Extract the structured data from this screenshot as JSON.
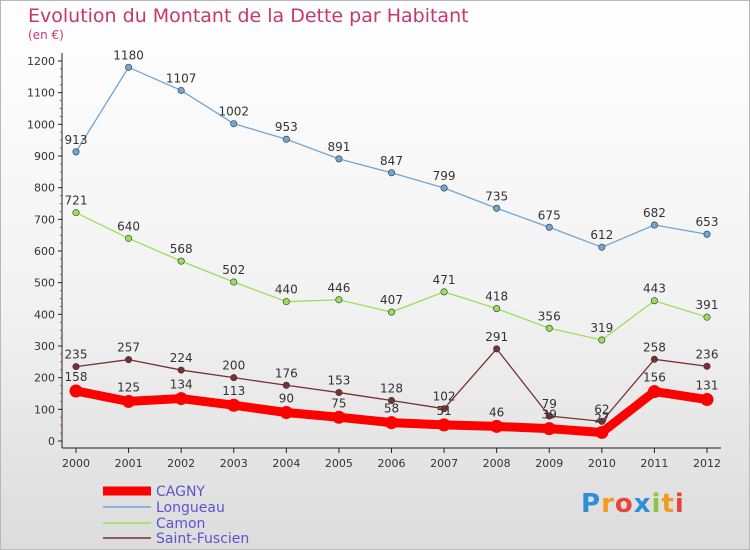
{
  "title": "Evolution du Montant de la Dette par Habitant",
  "unit": "(en €)",
  "logo": {
    "letters": [
      "P",
      "r",
      "o",
      "x",
      "i",
      "t",
      "i"
    ],
    "colors": [
      "#2f8fd6",
      "#f29a1d",
      "#e8463a",
      "#2f8fd6",
      "#8cc63f",
      "#f29a1d",
      "#e8463a"
    ]
  },
  "chart_data": {
    "type": "line",
    "x": [
      "2000",
      "2001",
      "2002",
      "2003",
      "2004",
      "2005",
      "2006",
      "2007",
      "2008",
      "2009",
      "2010",
      "2011",
      "2012"
    ],
    "ylim": [
      0,
      1200
    ],
    "yticks": [
      0,
      100,
      200,
      300,
      400,
      500,
      600,
      700,
      800,
      900,
      1000,
      1100,
      1200
    ],
    "grid": false,
    "legend": "bottom-left",
    "series": [
      {
        "name": "CAGNY",
        "color": "#ff0000",
        "values": [
          158,
          125,
          134,
          113,
          90,
          75,
          58,
          51,
          46,
          39,
          27,
          156,
          131
        ],
        "labels": [
          "158",
          "125",
          "134",
          "113",
          "90",
          "75",
          "58",
          "51",
          "46",
          "39",
          "27",
          "156",
          "131"
        ]
      },
      {
        "name": "Longueau",
        "color": "#6fa6d6",
        "values": [
          913,
          1180,
          1107,
          1002,
          953,
          891,
          847,
          799,
          735,
          675,
          612,
          682,
          653
        ],
        "labels": [
          "913",
          "1180",
          "1107",
          "1002",
          "953",
          "891",
          "847",
          "799",
          "735",
          "675",
          "612",
          "682",
          "653"
        ]
      },
      {
        "name": "Camon",
        "color": "#99e05a",
        "values": [
          721,
          640,
          568,
          502,
          440,
          446,
          407,
          471,
          418,
          356,
          319,
          443,
          391
        ],
        "labels": [
          "721",
          "640",
          "568",
          "502",
          "440",
          "446",
          "407",
          "471",
          "418",
          "356",
          "319",
          "443",
          "391"
        ]
      },
      {
        "name": "Saint-Fuscien",
        "color": "#7a3030",
        "values": [
          235,
          257,
          224,
          200,
          176,
          153,
          128,
          102,
          291,
          79,
          62,
          258,
          236
        ],
        "labels": [
          "235",
          "257",
          "224",
          "200",
          "176",
          "153",
          "128",
          "102",
          "291",
          "79",
          "62",
          "258",
          "236"
        ]
      }
    ]
  }
}
